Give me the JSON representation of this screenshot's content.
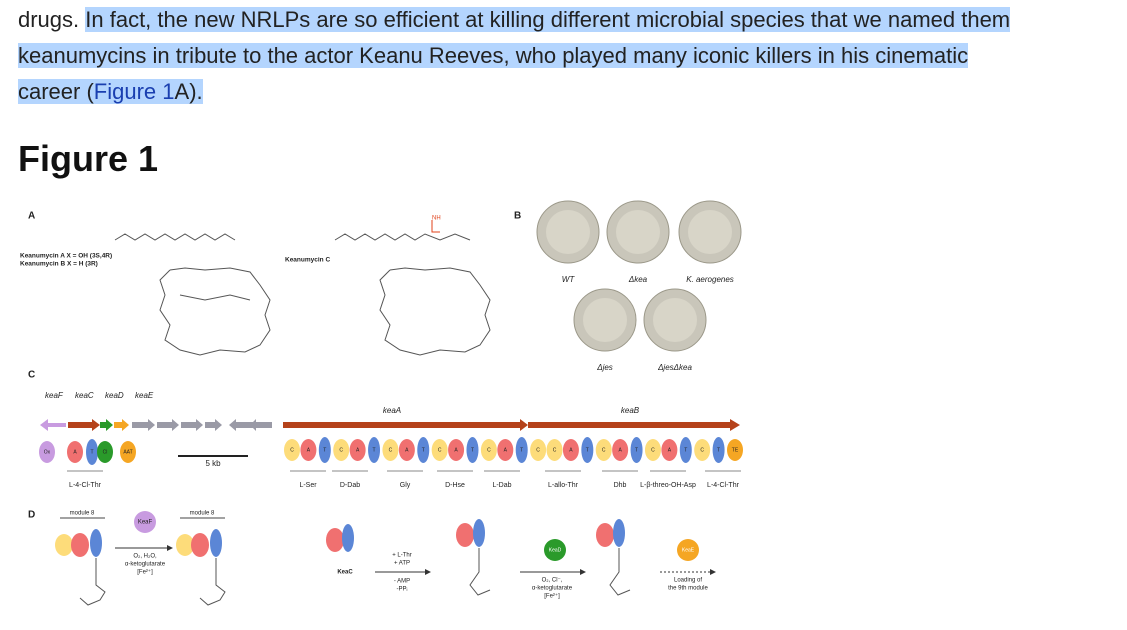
{
  "paragraph": {
    "line1_plain": "drugs. ",
    "line1_highlight": "In fact, the new NRLPs are so efficient at killing different microbial species that we named them",
    "line2_highlight": "keanumycins in tribute to the actor Keanu Reeves, who played many iconic killers in his cinematic",
    "line3_before": "career (",
    "line3_link": "Figure 1",
    "line3_after": "A)."
  },
  "heading": "Figure 1",
  "figure": {
    "panel_labels": [
      "A",
      "B",
      "C",
      "D"
    ],
    "panel_a": {
      "compound_ab_1": "Keanumycin A X = OH (3S,4R)",
      "compound_ab_2": "Keanumycin B X = H (3R)",
      "compound_c": "Keanumycin C"
    },
    "panel_b": {
      "plates": [
        "WT",
        "Δkea",
        "K. aerogenes",
        "Δjes",
        "ΔjesΔkea"
      ]
    },
    "panel_c": {
      "genes": [
        "keaF",
        "keaC",
        "keaD",
        "keaE",
        "keaA",
        "keaB"
      ],
      "scale": "5 kb",
      "left_domains": [
        "Ox",
        "A",
        "T",
        "Cl",
        "AAT"
      ],
      "domains": [
        "C",
        "A",
        "T",
        "C",
        "A",
        "T",
        "C",
        "A",
        "T",
        "C",
        "A",
        "T",
        "C",
        "A",
        "T",
        "C",
        "C",
        "A",
        "T",
        "C",
        "A",
        "T",
        "C",
        "A",
        "T",
        "C",
        "T",
        "TE"
      ],
      "substrates": [
        "L-4-Cl-Thr",
        "L-Ser",
        "D-Dab",
        "Gly",
        "D-Hse",
        "L-Dab",
        "L-allo-Thr",
        "Dhb",
        "L-β-threo-OH-Asp",
        "L-4-Cl-Thr"
      ]
    },
    "panel_d": {
      "module_left": "module 8",
      "module_right": "module 8",
      "enzyme_f": "KeaF",
      "cond_f": [
        "O₂, H₂O,",
        "α-ketoglutarate",
        "[Fe²⁺]"
      ],
      "enzyme_c": "KeaC",
      "cond_c_top": [
        "+ L-Thr",
        "+ ATP"
      ],
      "cond_c_bottom": [
        "- AMP",
        "-PPᵢ"
      ],
      "enzyme_d": "KeaD",
      "cond_d": [
        "O₂, Cl⁻,",
        "α-ketoglutarate",
        "[Fe²⁺]"
      ],
      "enzyme_e": "KeaE",
      "cond_e": [
        "Loading of",
        "the 9th module"
      ]
    }
  }
}
